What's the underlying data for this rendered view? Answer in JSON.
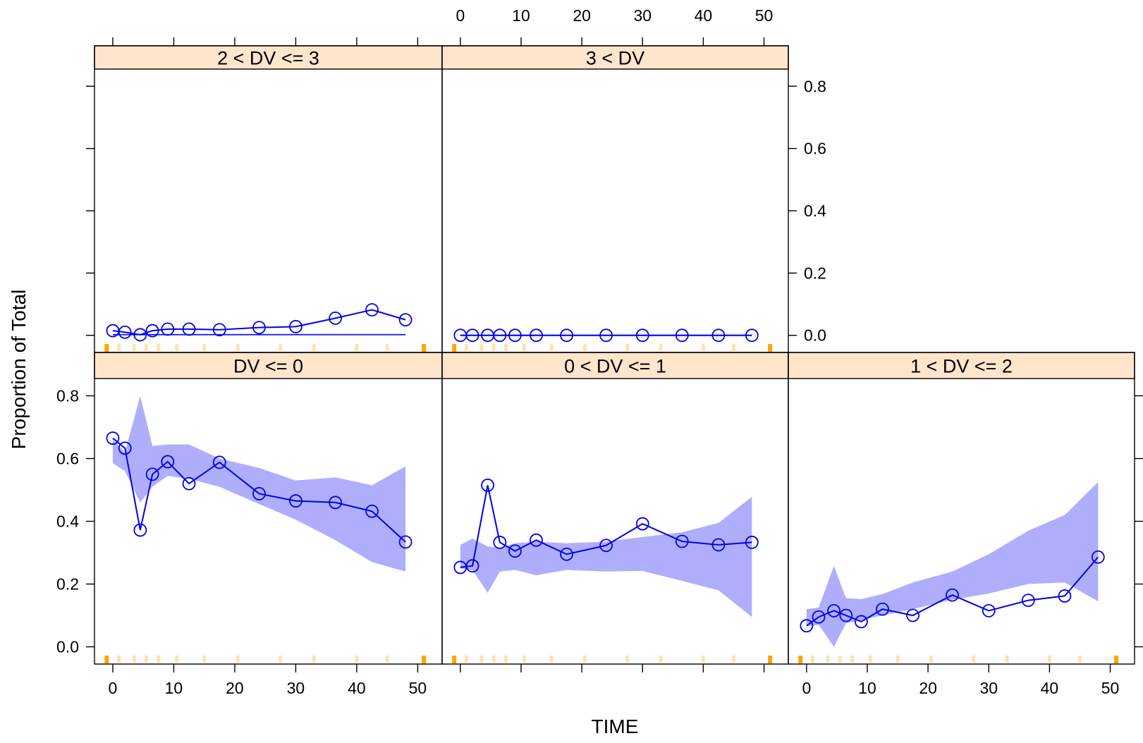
{
  "chart_data": {
    "type": "line",
    "xlabel": "TIME",
    "ylabel": "Proportion of Total",
    "xlim": [
      -3,
      54
    ],
    "ylim": [
      -0.055,
      0.855
    ],
    "x_ticks": [
      0,
      10,
      20,
      30,
      40,
      50
    ],
    "y_ticks": [
      0.0,
      0.2,
      0.4,
      0.6,
      0.8
    ],
    "x_tick_labels": [
      "0",
      "10",
      "20",
      "30",
      "40",
      "50"
    ],
    "y_tick_labels": [
      "0.0",
      "0.2",
      "0.4",
      "0.6",
      "0.8"
    ],
    "colors": {
      "line": "#0000ee",
      "band": "#aeaefc",
      "strip": "#ffe5cc",
      "bin_edge": "#ffa500",
      "bin_mid": "#ffe2b0"
    },
    "bin_edges": [
      -1,
      51
    ],
    "bin_midpoints": [
      1,
      3.5,
      5.5,
      7.5,
      10.5,
      15,
      20.5,
      27.5,
      33,
      40,
      45
    ],
    "panels": [
      {
        "strip": "2 < DV <= 3",
        "x": [
          0,
          2,
          4.5,
          6.5,
          9,
          12.5,
          17.5,
          24,
          30,
          36.5,
          42.5,
          48
        ],
        "values": [
          0.015,
          0.01,
          0.002,
          0.015,
          0.02,
          0.02,
          0.018,
          0.025,
          0.028,
          0.055,
          0.082,
          0.05
        ],
        "band_lower": [
          0,
          0,
          0,
          0,
          0,
          0,
          0,
          0,
          0,
          0,
          0,
          0
        ],
        "band_upper": [
          0.005,
          0.005,
          0.005,
          0.005,
          0.005,
          0.005,
          0.005,
          0.005,
          0.005,
          0.005,
          0.005,
          0.005
        ],
        "median_line": [
          0.002,
          0.002,
          0.002,
          0.002,
          0.002,
          0.002,
          0.002,
          0.002,
          0.002,
          0.002,
          0.002,
          0.002
        ]
      },
      {
        "strip": "3 < DV",
        "x": [
          0,
          2,
          4.5,
          6.5,
          9,
          12.5,
          17.5,
          24,
          30,
          36.5,
          42.5,
          48
        ],
        "values": [
          0,
          0,
          0,
          0,
          0,
          0,
          0,
          0,
          0,
          0,
          0,
          0
        ],
        "band_lower": [
          0,
          0,
          0,
          0,
          0,
          0,
          0,
          0,
          0,
          0,
          0,
          0
        ],
        "band_upper": [
          0.003,
          0.003,
          0.003,
          0.003,
          0.003,
          0.003,
          0.003,
          0.003,
          0.003,
          0.003,
          0.003,
          0.003
        ],
        "median_line": [
          0,
          0,
          0,
          0,
          0,
          0,
          0,
          0,
          0,
          0,
          0,
          0
        ]
      },
      {
        "strip": "DV <= 0",
        "x": [
          0,
          2,
          4.5,
          6.5,
          9,
          12.5,
          17.5,
          24,
          30,
          36.5,
          42.5,
          48
        ],
        "values": [
          0.665,
          0.633,
          0.372,
          0.55,
          0.59,
          0.52,
          0.588,
          0.488,
          0.465,
          0.46,
          0.432,
          0.334
        ],
        "band_lower": [
          0.585,
          0.56,
          0.46,
          0.51,
          0.545,
          0.535,
          0.51,
          0.455,
          0.405,
          0.34,
          0.27,
          0.24
        ],
        "band_upper": [
          0.66,
          0.62,
          0.8,
          0.64,
          0.645,
          0.645,
          0.6,
          0.57,
          0.53,
          0.54,
          0.515,
          0.575
        ]
      },
      {
        "strip": "0 < DV <= 1",
        "x": [
          0,
          2,
          4.5,
          6.5,
          9,
          12.5,
          17.5,
          24,
          30,
          36.5,
          42.5,
          48
        ],
        "values": [
          0.253,
          0.258,
          0.515,
          0.333,
          0.305,
          0.34,
          0.295,
          0.323,
          0.392,
          0.336,
          0.325,
          0.333
        ],
        "band_lower": [
          0.25,
          0.245,
          0.172,
          0.24,
          0.245,
          0.228,
          0.245,
          0.24,
          0.242,
          0.21,
          0.18,
          0.095
        ],
        "band_upper": [
          0.325,
          0.345,
          0.32,
          0.315,
          0.33,
          0.335,
          0.33,
          0.335,
          0.35,
          0.365,
          0.395,
          0.478
        ]
      },
      {
        "strip": "1 < DV <= 2",
        "x": [
          0,
          2,
          4.5,
          6.5,
          9,
          12.5,
          17.5,
          24,
          30,
          36.5,
          42.5,
          48
        ],
        "values": [
          0.067,
          0.095,
          0.115,
          0.1,
          0.08,
          0.12,
          0.1,
          0.165,
          0.115,
          0.148,
          0.162,
          0.286
        ],
        "band_lower": [
          0.065,
          0.07,
          0.0,
          0.075,
          0.085,
          0.1,
          0.12,
          0.15,
          0.17,
          0.2,
          0.205,
          0.145
        ],
        "band_upper": [
          0.12,
          0.125,
          0.258,
          0.155,
          0.152,
          0.168,
          0.205,
          0.24,
          0.295,
          0.37,
          0.42,
          0.525
        ]
      }
    ]
  }
}
